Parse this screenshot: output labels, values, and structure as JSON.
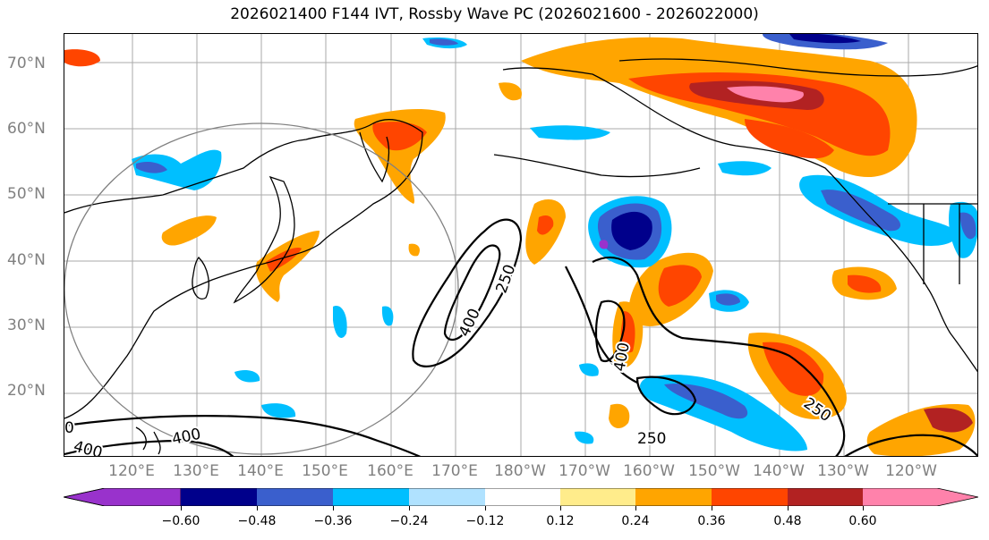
{
  "title": "2026021400 F144 IVT, Rossby Wave PC (2026021600 - 2026022000)",
  "lat_labels": [
    "70°N",
    "60°N",
    "50°N",
    "40°N",
    "30°N",
    "20°N"
  ],
  "lon_labels": [
    "120°E",
    "130°E",
    "140°E",
    "150°E",
    "160°E",
    "170°E",
    "180°W",
    "170°W",
    "160°W",
    "150°W",
    "140°W",
    "130°W",
    "120°W"
  ],
  "contour_labels": {
    "c250_mid": "250",
    "c400_mid": "400",
    "c400_center": "400",
    "c250_east": "250",
    "c250_south": "250",
    "c400_sw": "400",
    "c400_sw2": "400",
    "c0_edge": "0"
  },
  "colorbar": {
    "ticks": [
      "−0.60",
      "−0.48",
      "−0.36",
      "−0.24",
      "−0.12",
      "0.12",
      "0.24",
      "0.36",
      "0.48",
      "0.60"
    ],
    "colors": {
      "ext_low": "#9932cc",
      "b1": "#00008b",
      "b2": "#3a5fcd",
      "b3": "#00bfff",
      "b4": "#b0e2ff",
      "b5": "#ffffff",
      "b6": "#ffec8b",
      "b7": "#ffa500",
      "b8": "#ff4500",
      "b9": "#b22222",
      "ext_high": "#ff82ab"
    }
  }
}
